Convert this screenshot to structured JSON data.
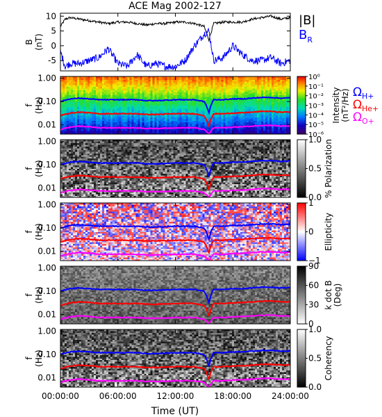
{
  "chart_data": {
    "title": "ACE Mag 2002-127",
    "xlabel": "Time (UT)",
    "x_ticks": [
      "00:00:00",
      "06:00:00",
      "12:00:00",
      "18:00:00",
      "24:00:00"
    ],
    "x_tick_hours": [
      0,
      6,
      12,
      18,
      24
    ],
    "xlim_hours": [
      0,
      24
    ],
    "colors": {
      "B": "#000000",
      "BR": "#0000ff",
      "H": "#0000ff",
      "He": "#ff0000",
      "O": "#ff00ff"
    },
    "panels": [
      {
        "type": "line",
        "ylabel_top": "B",
        "ylabel_bottom": "(nT)",
        "ylim": [
          -8.5,
          11
        ],
        "y_ticks": [
          -5,
          0,
          5,
          10
        ],
        "y_tick_labels": [
          "-5",
          "0",
          "5",
          "10"
        ],
        "legend": [
          "|B|",
          "B"
        ],
        "legend_subscript": "R",
        "series": [
          {
            "name": "|B|",
            "x": [
              0,
              0.5,
              1,
              2,
              3,
              4,
              5,
              6,
              7,
              8,
              9,
              10,
              11,
              12,
              13,
              14,
              15,
              15.5,
              16,
              17,
              18,
              19,
              20,
              21,
              22,
              23,
              24
            ],
            "y": [
              6.5,
              9.0,
              9.5,
              9.0,
              8.5,
              8.0,
              7.5,
              8.0,
              8.0,
              7.5,
              7.0,
              7.5,
              7.5,
              8.0,
              8.0,
              7.5,
              6.5,
              2.0,
              7.5,
              8.0,
              8.0,
              8.0,
              9.0,
              9.5,
              10.0,
              9.0,
              9.5
            ]
          },
          {
            "name": "B_R",
            "x": [
              0,
              0.5,
              1,
              2,
              3,
              4,
              5,
              6,
              7,
              8,
              9,
              10,
              11,
              12,
              13,
              14,
              15,
              15.5,
              16,
              17,
              18,
              19,
              20,
              21,
              22,
              23,
              24
            ],
            "y": [
              -2,
              -7,
              -6,
              -6,
              -5,
              -4,
              -1,
              -6,
              -7,
              -3,
              -7,
              -6,
              -7,
              -7,
              -5,
              0,
              4,
              5,
              -5,
              -4,
              0,
              -3,
              -5,
              -5,
              -4,
              -6,
              -5
            ]
          }
        ]
      },
      {
        "type": "heatmap",
        "metric": "intensity",
        "ylabel_top": "f",
        "ylabel_bottom": "(Hz)",
        "ylim": [
          0.004,
          1.2
        ],
        "y_scale": "log",
        "y_ticks": [
          0.01,
          0.1,
          1
        ],
        "y_tick_labels": [
          "0.01",
          "0.10",
          "1.00"
        ],
        "colorbar": {
          "colormap": "rainbow",
          "scale": "log",
          "range": [
            1e-06,
            1
          ],
          "ticks": [
            1e-06,
            1e-05,
            0.0001,
            0.001,
            0.01,
            0.1,
            1
          ],
          "tick_labels": [
            "10⁻⁶",
            "10⁻⁵",
            "10⁻⁴",
            "10⁻³",
            "10⁻²",
            "10⁻¹",
            "10⁰"
          ],
          "label_lines": [
            "Intensity",
            "(nT²/Hz)"
          ]
        },
        "gyro_labels": [
          {
            "omega": "Ω",
            "sub": "H+",
            "color": "#0000ff"
          },
          {
            "omega": "Ω",
            "sub": "He+",
            "color": "#ff0000"
          },
          {
            "omega": "Ω",
            "sub": "O+",
            "color": "#ff00ff"
          }
        ]
      },
      {
        "type": "heatmap",
        "metric": "polarization",
        "ylabel_top": "f",
        "ylabel_bottom": "(Hz)",
        "ylim": [
          0.004,
          1.2
        ],
        "y_scale": "log",
        "y_ticks": [
          0.01,
          0.1,
          1
        ],
        "y_tick_labels": [
          "0.01",
          "0.10",
          "1.00"
        ],
        "colorbar": {
          "colormap": "grayscale",
          "scale": "linear",
          "range": [
            0,
            1
          ],
          "ticks": [
            0,
            0.5,
            1
          ],
          "tick_labels": [
            "0.0",
            "0.5",
            "1.0"
          ],
          "label_lines": [
            "% Polarization"
          ]
        }
      },
      {
        "type": "heatmap",
        "metric": "ellipticity",
        "ylabel_top": "f",
        "ylabel_bottom": "(Hz)",
        "ylim": [
          0.004,
          1.2
        ],
        "y_scale": "log",
        "y_ticks": [
          0.01,
          0.1,
          1
        ],
        "y_tick_labels": [
          "0.01",
          "0.10",
          "1.00"
        ],
        "colorbar": {
          "colormap": "blue-white-red",
          "scale": "linear",
          "range": [
            -1,
            1
          ],
          "ticks": [
            -1,
            0,
            1
          ],
          "tick_labels": [
            "−1",
            "0",
            "1"
          ],
          "label_lines": [
            "Ellipticity"
          ]
        }
      },
      {
        "type": "heatmap",
        "metric": "k_dot_b",
        "ylabel_top": "f",
        "ylabel_bottom": "(Hz)",
        "ylim": [
          0.004,
          1.2
        ],
        "y_scale": "log",
        "y_ticks": [
          0.01,
          0.1,
          1
        ],
        "y_tick_labels": [
          "0.01",
          "0.10",
          "1.00"
        ],
        "colorbar": {
          "colormap": "grayscale-reversed",
          "scale": "linear",
          "range": [
            0,
            90
          ],
          "ticks": [
            0,
            30,
            60,
            90
          ],
          "tick_labels": [
            "0",
            "30",
            "60",
            "90"
          ],
          "label_lines": [
            "k dot B",
            "(Deg)"
          ]
        }
      },
      {
        "type": "heatmap",
        "metric": "coherency",
        "ylabel_top": "f",
        "ylabel_bottom": "(Hz)",
        "ylim": [
          0.004,
          1.2
        ],
        "y_scale": "log",
        "y_ticks": [
          0.01,
          0.1,
          1
        ],
        "y_tick_labels": [
          "0.01",
          "0.10",
          "1.00"
        ],
        "colorbar": {
          "colormap": "grayscale",
          "scale": "linear",
          "range": [
            0,
            1
          ],
          "ticks": [
            0,
            0.5,
            1
          ],
          "tick_labels": [
            "0.0",
            "0.5",
            "1.0"
          ],
          "label_lines": [
            "Coherency"
          ]
        }
      }
    ],
    "gyrofrequency_lines": [
      {
        "name": "Ω_H+",
        "x": [
          0,
          1,
          2,
          3,
          4,
          5,
          6,
          7,
          8,
          9,
          10,
          11,
          12,
          13,
          14,
          15,
          15.5,
          16,
          17,
          18,
          19,
          20,
          21,
          22,
          23,
          24
        ],
        "y": [
          0.1,
          0.13,
          0.14,
          0.13,
          0.12,
          0.12,
          0.12,
          0.12,
          0.12,
          0.11,
          0.11,
          0.115,
          0.12,
          0.12,
          0.12,
          0.1,
          0.03,
          0.12,
          0.12,
          0.13,
          0.13,
          0.14,
          0.15,
          0.15,
          0.14,
          0.145
        ]
      },
      {
        "name": "Ω_He+",
        "x": [
          0,
          1,
          2,
          3,
          4,
          5,
          6,
          7,
          8,
          9,
          10,
          11,
          12,
          13,
          14,
          15,
          15.5,
          16,
          17,
          18,
          19,
          20,
          21,
          22,
          23,
          24
        ],
        "y": [
          0.025,
          0.032,
          0.035,
          0.033,
          0.03,
          0.03,
          0.03,
          0.03,
          0.03,
          0.028,
          0.028,
          0.029,
          0.03,
          0.03,
          0.03,
          0.025,
          0.008,
          0.03,
          0.03,
          0.032,
          0.033,
          0.035,
          0.038,
          0.038,
          0.035,
          0.036
        ]
      },
      {
        "name": "Ω_O+",
        "x": [
          0,
          1,
          2,
          3,
          4,
          5,
          6,
          7,
          8,
          9,
          10,
          11,
          12,
          13,
          14,
          15,
          15.5,
          16,
          17,
          18,
          19,
          20,
          21,
          22,
          23,
          24
        ],
        "y": [
          0.0063,
          0.008,
          0.0088,
          0.0083,
          0.0075,
          0.0075,
          0.0075,
          0.0075,
          0.0075,
          0.007,
          0.007,
          0.0072,
          0.0075,
          0.0075,
          0.0075,
          0.0063,
          0.004,
          0.0075,
          0.0075,
          0.008,
          0.0083,
          0.0088,
          0.0095,
          0.0095,
          0.0088,
          0.009
        ]
      }
    ]
  }
}
